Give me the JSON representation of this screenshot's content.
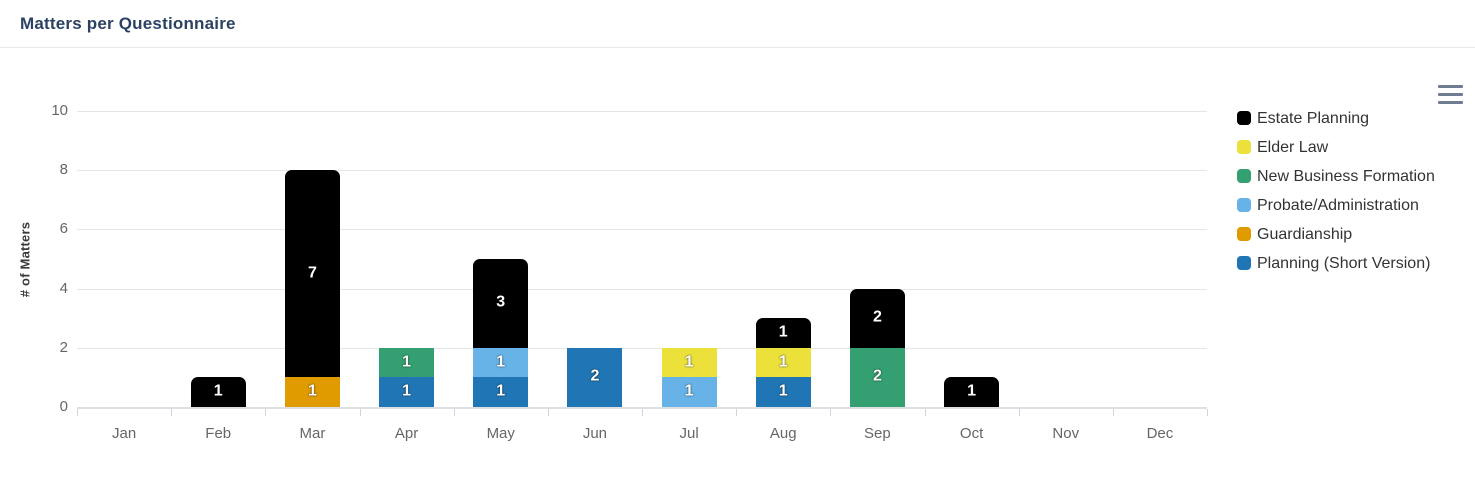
{
  "header": {
    "title": "Matters per Questionnaire"
  },
  "icons": {
    "context_menu": "hamburger-menu"
  },
  "chart_data": {
    "type": "bar",
    "stacked": true,
    "title": "",
    "xlabel": "",
    "ylabel": "# of Matters",
    "ylim": [
      0,
      10
    ],
    "yticks": [
      0,
      2,
      4,
      6,
      8,
      10
    ],
    "grid": true,
    "legend_position": "right",
    "categories": [
      "Jan",
      "Feb",
      "Mar",
      "Apr",
      "May",
      "Jun",
      "Jul",
      "Aug",
      "Sep",
      "Oct",
      "Nov",
      "Dec"
    ],
    "series": [
      {
        "name": "Estate Planning",
        "color": "#000000",
        "rounded_top": true,
        "values": [
          0,
          1,
          7,
          0,
          3,
          0,
          0,
          1,
          2,
          1,
          0,
          0
        ]
      },
      {
        "name": "Elder Law",
        "color": "#ece13b",
        "rounded_top": false,
        "values": [
          0,
          0,
          0,
          0,
          0,
          0,
          1,
          1,
          0,
          0,
          0,
          0
        ]
      },
      {
        "name": "New Business Formation",
        "color": "#34a071",
        "rounded_top": false,
        "values": [
          0,
          0,
          0,
          1,
          0,
          0,
          0,
          0,
          2,
          0,
          0,
          0
        ]
      },
      {
        "name": "Probate/Administration",
        "color": "#67b3e7",
        "rounded_top": false,
        "values": [
          0,
          0,
          0,
          0,
          1,
          0,
          1,
          0,
          0,
          0,
          0,
          0
        ]
      },
      {
        "name": "Guardianship",
        "color": "#df9b00",
        "rounded_top": false,
        "values": [
          0,
          0,
          1,
          0,
          0,
          0,
          0,
          0,
          0,
          0,
          0,
          0
        ]
      },
      {
        "name": "Planning (Short Version)",
        "color": "#2076b4",
        "rounded_top": false,
        "values": [
          0,
          0,
          0,
          1,
          1,
          2,
          0,
          1,
          0,
          0,
          0,
          0
        ]
      }
    ],
    "stack_order_bottom_to_top": [
      5,
      4,
      3,
      2,
      1,
      0
    ],
    "monthly_totals": [
      0,
      1,
      8,
      2,
      5,
      2,
      2,
      3,
      4,
      1,
      0,
      0
    ]
  }
}
